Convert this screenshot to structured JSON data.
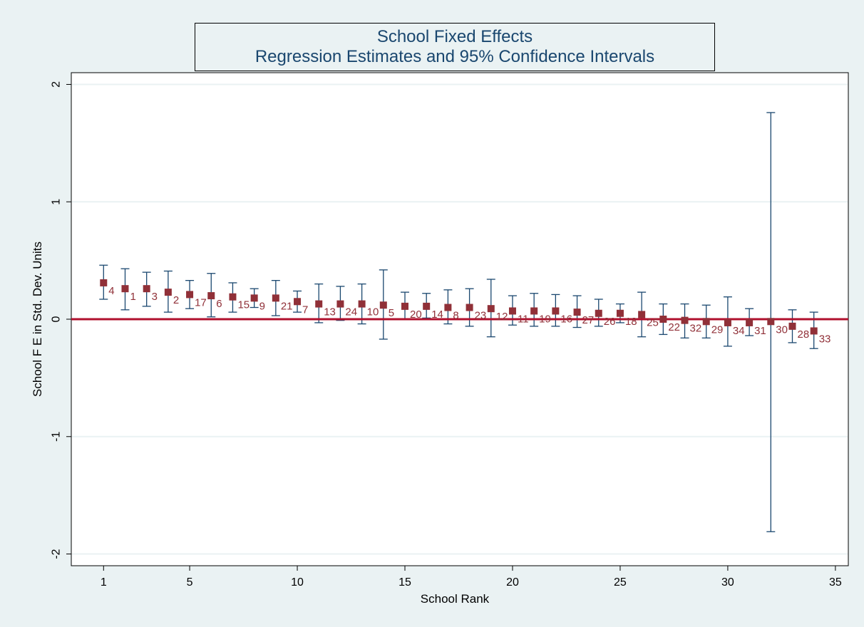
{
  "chart_data": {
    "type": "scatter",
    "title": "School Fixed Effects",
    "subtitle": "Regression Estimates and 95% Confidence Intervals",
    "xlabel": "School Rank",
    "ylabel": "School F E in Std. Dev. Units",
    "xlim": [
      -0.5,
      35.6
    ],
    "ylim": [
      -2.1,
      2.1
    ],
    "x_ticks": [
      1,
      5,
      10,
      15,
      20,
      25,
      30,
      35
    ],
    "y_ticks": [
      -2,
      -1,
      0,
      1,
      2
    ],
    "y_tick_labels": [
      "-2",
      "-1",
      "0",
      "1",
      "2"
    ],
    "reference_line": {
      "y": 0,
      "color": "#b0102d"
    },
    "grid": true,
    "legend": "none",
    "colors": {
      "marker": "#903038",
      "ci": "#1a476f",
      "label": "#903038",
      "grid": "#ffffff",
      "plot_bg": "#ffffff"
    },
    "points": [
      {
        "rank": 1,
        "school": "4",
        "estimate": 0.31,
        "ci_low": 0.17,
        "ci_high": 0.46
      },
      {
        "rank": 2,
        "school": "1",
        "estimate": 0.26,
        "ci_low": 0.08,
        "ci_high": 0.43
      },
      {
        "rank": 3,
        "school": "3",
        "estimate": 0.26,
        "ci_low": 0.11,
        "ci_high": 0.4
      },
      {
        "rank": 4,
        "school": "2",
        "estimate": 0.23,
        "ci_low": 0.06,
        "ci_high": 0.41
      },
      {
        "rank": 5,
        "school": "17",
        "estimate": 0.21,
        "ci_low": 0.09,
        "ci_high": 0.33
      },
      {
        "rank": 6,
        "school": "6",
        "estimate": 0.2,
        "ci_low": 0.02,
        "ci_high": 0.39
      },
      {
        "rank": 7,
        "school": "15",
        "estimate": 0.19,
        "ci_low": 0.06,
        "ci_high": 0.31
      },
      {
        "rank": 8,
        "school": "9",
        "estimate": 0.18,
        "ci_low": 0.1,
        "ci_high": 0.26
      },
      {
        "rank": 9,
        "school": "21",
        "estimate": 0.18,
        "ci_low": 0.03,
        "ci_high": 0.33
      },
      {
        "rank": 10,
        "school": "7",
        "estimate": 0.15,
        "ci_low": 0.06,
        "ci_high": 0.24
      },
      {
        "rank": 11,
        "school": "13",
        "estimate": 0.13,
        "ci_low": -0.03,
        "ci_high": 0.3
      },
      {
        "rank": 12,
        "school": "24",
        "estimate": 0.13,
        "ci_low": -0.01,
        "ci_high": 0.28
      },
      {
        "rank": 13,
        "school": "10",
        "estimate": 0.13,
        "ci_low": -0.04,
        "ci_high": 0.3
      },
      {
        "rank": 14,
        "school": "5",
        "estimate": 0.12,
        "ci_low": -0.17,
        "ci_high": 0.42
      },
      {
        "rank": 15,
        "school": "20",
        "estimate": 0.11,
        "ci_low": 0.0,
        "ci_high": 0.23
      },
      {
        "rank": 16,
        "school": "14",
        "estimate": 0.11,
        "ci_low": 0.01,
        "ci_high": 0.22
      },
      {
        "rank": 17,
        "school": "8",
        "estimate": 0.1,
        "ci_low": -0.04,
        "ci_high": 0.25
      },
      {
        "rank": 18,
        "school": "23",
        "estimate": 0.1,
        "ci_low": -0.06,
        "ci_high": 0.26
      },
      {
        "rank": 19,
        "school": "12",
        "estimate": 0.09,
        "ci_low": -0.15,
        "ci_high": 0.34
      },
      {
        "rank": 20,
        "school": "11",
        "estimate": 0.07,
        "ci_low": -0.05,
        "ci_high": 0.2
      },
      {
        "rank": 21,
        "school": "19",
        "estimate": 0.07,
        "ci_low": -0.06,
        "ci_high": 0.22
      },
      {
        "rank": 22,
        "school": "16",
        "estimate": 0.07,
        "ci_low": -0.06,
        "ci_high": 0.21
      },
      {
        "rank": 23,
        "school": "27",
        "estimate": 0.06,
        "ci_low": -0.07,
        "ci_high": 0.2
      },
      {
        "rank": 24,
        "school": "26",
        "estimate": 0.05,
        "ci_low": -0.06,
        "ci_high": 0.17
      },
      {
        "rank": 25,
        "school": "18",
        "estimate": 0.05,
        "ci_low": -0.03,
        "ci_high": 0.13
      },
      {
        "rank": 26,
        "school": "25",
        "estimate": 0.04,
        "ci_low": -0.15,
        "ci_high": 0.23
      },
      {
        "rank": 27,
        "school": "22",
        "estimate": 0.0,
        "ci_low": -0.13,
        "ci_high": 0.13
      },
      {
        "rank": 28,
        "school": "32",
        "estimate": -0.01,
        "ci_low": -0.16,
        "ci_high": 0.13
      },
      {
        "rank": 29,
        "school": "29",
        "estimate": -0.02,
        "ci_low": -0.16,
        "ci_high": 0.12
      },
      {
        "rank": 30,
        "school": "34",
        "estimate": -0.03,
        "ci_low": -0.23,
        "ci_high": 0.19
      },
      {
        "rank": 31,
        "school": "31",
        "estimate": -0.03,
        "ci_low": -0.14,
        "ci_high": 0.09
      },
      {
        "rank": 32,
        "school": "30",
        "estimate": -0.02,
        "ci_low": -1.81,
        "ci_high": 1.76
      },
      {
        "rank": 33,
        "school": "28",
        "estimate": -0.06,
        "ci_low": -0.2,
        "ci_high": 0.08
      },
      {
        "rank": 34,
        "school": "33",
        "estimate": -0.1,
        "ci_low": -0.25,
        "ci_high": 0.06
      }
    ]
  }
}
